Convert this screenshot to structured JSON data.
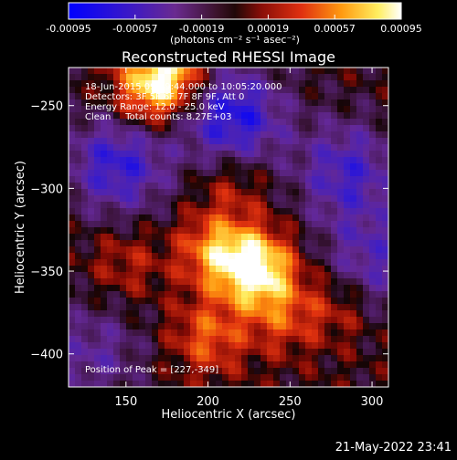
{
  "chart_data": {
    "type": "heatmap",
    "title": "Reconstructed RHESSI Image",
    "xlabel": "Heliocentric X (arcsec)",
    "ylabel": "Heliocentric Y (arcsec)",
    "xlim": [
      115,
      310
    ],
    "ylim": [
      -420,
      -227
    ],
    "x_ticks": [
      150,
      200,
      250,
      300
    ],
    "y_ticks": [
      -250,
      -300,
      -350,
      -400
    ],
    "colorbar": {
      "colormap": "blue-purple-red-yellow-white",
      "range": [
        -0.00095,
        0.00095
      ],
      "tick_values": [
        -0.00095,
        -0.00057,
        -0.00019,
        0.00019,
        0.00057,
        0.00095
      ],
      "tick_labels": [
        "-0.00095",
        "-0.00057",
        "-0.00019",
        "0.00019",
        "0.00057",
        "0.00095"
      ],
      "unit_label": "(photons cm⁻² s⁻¹ asec⁻²)"
    },
    "annotations": {
      "time_range": "18-Jun-2015 09:59:44.000 to 10:05:20.000",
      "detectors": "Detectors: 3F 5F 6F 7F 8F 9F, Att 0",
      "energy_range": "Energy Range: 12.0 - 25.0 keV",
      "method_counts": "Clean     Total counts: 8.27E+03",
      "peak_position": "Position of Peak = [227,-349]"
    },
    "peak": [
      227,
      -349
    ],
    "sources": [
      {
        "x": 230,
        "y": -349,
        "amplitude": 0.00095
      },
      {
        "x": 205,
        "y": -338,
        "amplitude": 0.0006
      },
      {
        "x": 175,
        "y": -232,
        "amplitude": 0.00085
      },
      {
        "x": 160,
        "y": -245,
        "amplitude": 0.0004
      },
      {
        "x": 215,
        "y": -295,
        "amplitude": 0.0003
      },
      {
        "x": 200,
        "y": -390,
        "amplitude": 0.00045
      },
      {
        "x": 245,
        "y": -378,
        "amplitude": 0.00035
      },
      {
        "x": 280,
        "y": -370,
        "amplitude": 0.0003
      },
      {
        "x": 150,
        "y": -345,
        "amplitude": 0.00025
      }
    ],
    "negative_regions": [
      {
        "x": 145,
        "y": -285,
        "amplitude": -0.0007
      },
      {
        "x": 215,
        "y": -258,
        "amplitude": -0.0008
      },
      {
        "x": 285,
        "y": -290,
        "amplitude": -0.0006
      },
      {
        "x": 300,
        "y": -345,
        "amplitude": -0.0005
      },
      {
        "x": 130,
        "y": -400,
        "amplitude": -0.0004
      }
    ]
  },
  "footer": {
    "date": "21-May-2022 23:41"
  }
}
